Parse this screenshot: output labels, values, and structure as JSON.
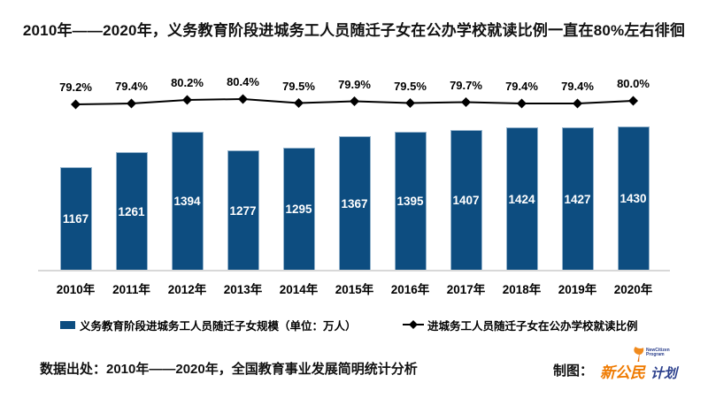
{
  "page": {
    "title": "2010年——2020年，义务教育阶段进城务工人员随迁子女在公办学校就读比例一直在80%左右徘徊"
  },
  "chart_data": {
    "type": "bar",
    "title": "2010年——2020年，义务教育阶段进城务工人员随迁子女在公办学校就读比例一直在80%左右徘徊",
    "categories": [
      "2010年",
      "2011年",
      "2012年",
      "2013年",
      "2014年",
      "2015年",
      "2016年",
      "2017年",
      "2018年",
      "2019年",
      "2020年"
    ],
    "series": [
      {
        "name": "义务教育阶段进城务工人员随迁子女规模（单位：万人）",
        "type": "bar",
        "color": "#0d4d80",
        "values": [
          1167,
          1261,
          1394,
          1277,
          1295,
          1367,
          1395,
          1407,
          1424,
          1427,
          1430
        ],
        "value_labels": [
          "1167",
          "1261",
          "1394",
          "1277",
          "1295",
          "1367",
          "1395",
          "1407",
          "1424",
          "1427",
          "1430"
        ]
      },
      {
        "name": "进城务工人员随迁子女在公办学校就读比例",
        "type": "line",
        "color": "#000000",
        "marker": "diamond",
        "values": [
          79.2,
          79.4,
          80.2,
          80.4,
          79.5,
          79.9,
          79.5,
          79.7,
          79.4,
          79.4,
          80.0
        ],
        "value_labels": [
          "79.2%",
          "79.4%",
          "80.2%",
          "80.4%",
          "79.5%",
          "79.9%",
          "79.5%",
          "79.7%",
          "79.4%",
          "79.4%",
          "80.0%"
        ]
      }
    ],
    "bar_axis_estimate": [
      500,
      1430
    ],
    "line_axis_estimate": [
      79.2,
      80.4
    ],
    "grid": false,
    "legend_position": "bottom",
    "xlabel": "",
    "ylabel": ""
  },
  "legend": {
    "bar_label": "义务教育阶段进城务工人员随迁子女规模（单位：万人）",
    "line_label": "进城务工人员随迁子女在公办学校就读比例"
  },
  "footer": {
    "source": "数据出处：2010年——2020年，全国教育事业发展简明统计分析",
    "credit_label": "制图：",
    "logo": {
      "text_part1": "新公民",
      "text_part2": "计划",
      "subtext_line1": "NewCitizen",
      "subtext_line2": "Program",
      "orange": "#ef7a00",
      "blue": "#2b3f8c"
    }
  },
  "colors": {
    "bar": "#0d4d80",
    "bar_edge": "#94b3cc",
    "line": "#000000",
    "axis_line": "#d8d8d8",
    "text": "#111111",
    "bar_value_text": "#ffffff"
  }
}
